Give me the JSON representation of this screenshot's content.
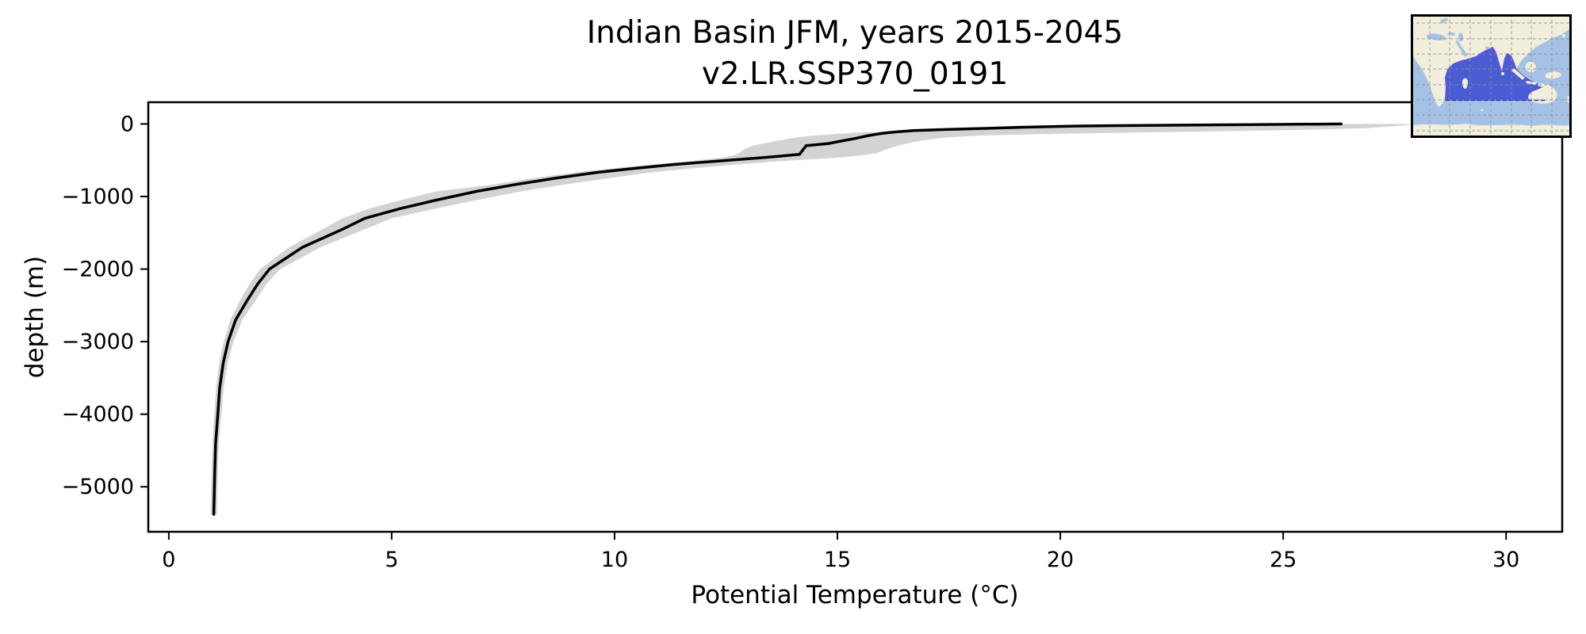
{
  "title": {
    "line1": "Indian Basin JFM, years 2015-2045",
    "line2": "v2.LR.SSP370_0191"
  },
  "axes": {
    "xlabel": "Potential Temperature (°C)",
    "ylabel": "depth (m)",
    "xlim": [
      -0.46,
      31.26
    ],
    "ylim": [
      -5620,
      299
    ],
    "xticks": [
      0,
      5,
      10,
      15,
      20,
      25,
      30
    ],
    "xtick_labels": [
      "0",
      "5",
      "10",
      "15",
      "20",
      "25",
      "30"
    ],
    "yticks": [
      0,
      -1000,
      -2000,
      -3000,
      -4000,
      -5000
    ],
    "ytick_labels": [
      "0",
      "−1000",
      "−2000",
      "−3000",
      "−4000",
      "−5000"
    ]
  },
  "chart_data": {
    "type": "line",
    "title": "Indian Basin JFM, years 2015-2045 v2.LR.SSP370_0191",
    "xlabel": "Potential Temperature (°C)",
    "ylabel": "depth (m)",
    "xlim": [
      -0.46,
      31.26
    ],
    "ylim": [
      -5620,
      299
    ],
    "grid": false,
    "legend": "none",
    "profile": {
      "name": "mean potential temperature profile",
      "depth_m": [
        0,
        -8,
        -15,
        -22,
        -30,
        -45,
        -60,
        -75,
        -92,
        -110,
        -130,
        -160,
        -200,
        -240,
        -270,
        -288,
        -298,
        -420,
        -445,
        -465,
        -517,
        -560,
        -615,
        -669,
        -745,
        -832,
        -930,
        -1050,
        -1165,
        -1300,
        -1450,
        -1700,
        -2000,
        -2200,
        -2430,
        -2700,
        -3000,
        -3300,
        -3650,
        -4000,
        -4400,
        -4800,
        -5100,
        -5380
      ],
      "temperature_c": [
        26.3,
        24.6,
        23.0,
        21.6,
        20.3,
        19.2,
        18.4,
        17.5,
        16.7,
        16.3,
        16.0,
        15.7,
        15.4,
        15.05,
        14.8,
        14.5,
        14.3,
        14.15,
        13.7,
        13.3,
        12.2,
        11.3,
        10.4,
        9.6,
        8.7,
        7.8,
        6.9,
        6.0,
        5.2,
        4.4,
        3.9,
        3.0,
        2.26,
        2.0,
        1.76,
        1.5,
        1.33,
        1.22,
        1.14,
        1.1,
        1.05,
        1.03,
        1.02,
        1.01
      ]
    },
    "envelope": {
      "name": "±1 std envelope",
      "depth_m": [
        0,
        -20,
        -40,
        -60,
        -80,
        -100,
        -120,
        -140,
        -160,
        -185,
        -210,
        -250,
        -300,
        -350,
        -400,
        -430,
        -465,
        -517,
        -560,
        -615,
        -669,
        -745,
        -832,
        -930,
        -1050,
        -1165,
        -1300,
        -1450,
        -1700,
        -2000,
        -2200,
        -2430,
        -2700,
        -3000,
        -3300,
        -3650,
        -4000,
        -4400,
        -4800,
        -5100,
        -5380
      ],
      "lower_c": [
        24.8,
        22.9,
        21.0,
        19.3,
        17.8,
        16.3,
        15.4,
        14.9,
        14.5,
        14.1,
        13.85,
        13.5,
        13.1,
        12.9,
        12.8,
        12.7,
        12.4,
        11.6,
        10.8,
        9.9,
        9.1,
        8.2,
        7.3,
        6.0,
        5.2,
        4.5,
        3.9,
        3.45,
        2.7,
        2.05,
        1.82,
        1.6,
        1.38,
        1.23,
        1.13,
        1.06,
        1.02,
        0.98,
        0.96,
        0.95,
        0.94
      ],
      "upper_c": [
        27.9,
        27.7,
        27.3,
        26.8,
        25.5,
        23.8,
        21.5,
        19.5,
        18.2,
        17.5,
        17.1,
        16.7,
        16.35,
        16.1,
        15.9,
        15.6,
        15.0,
        13.6,
        12.7,
        11.7,
        10.8,
        9.9,
        8.9,
        7.9,
        6.9,
        6.0,
        5.0,
        4.4,
        3.4,
        2.5,
        2.2,
        1.95,
        1.65,
        1.45,
        1.32,
        1.23,
        1.18,
        1.12,
        1.1,
        1.09,
        1.08
      ]
    }
  },
  "inset_map": {
    "name": "Indian Ocean basin locator map",
    "region": "Indian Basin"
  },
  "colors": {
    "line": "#000000",
    "band": "#d3d3d3",
    "spine": "#000000",
    "map_ocean": "#a6c1e6",
    "map_land": "#f1eedb",
    "map_basin": "#4a5cd4",
    "map_basin_edge": "#5b50e8",
    "map_grid": "#8d8d8d",
    "map_dash": "#2239b8",
    "map_border": "#000000"
  }
}
